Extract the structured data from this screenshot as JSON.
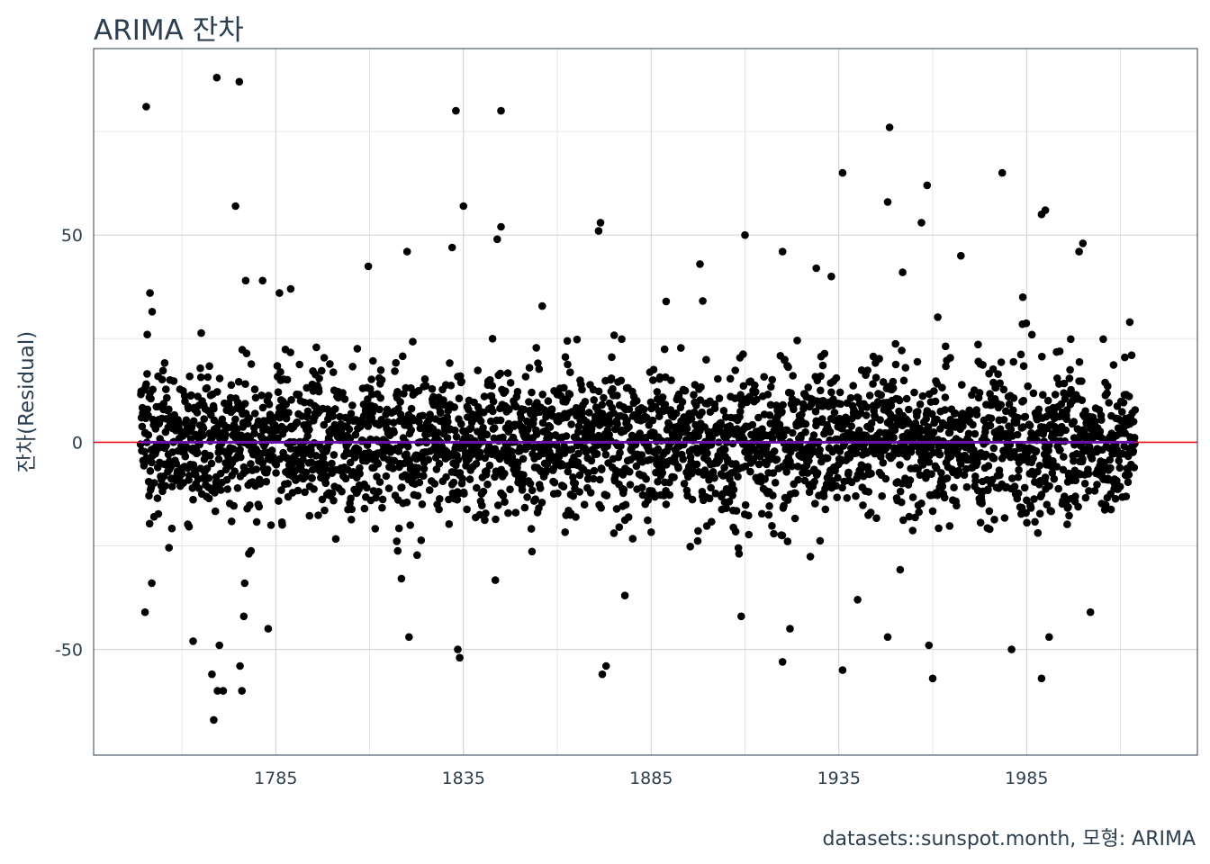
{
  "chart_data": {
    "type": "scatter",
    "title": "ARIMA 잔차",
    "xlabel": "",
    "ylabel": "잔차(Residual)",
    "caption": "datasets::sunspot.month, 모형: ARIMA",
    "x_range": [
      1749,
      2014
    ],
    "xlim": [
      1736.5,
      2030.5
    ],
    "ylim": [
      -75.5,
      95
    ],
    "x_ticks": [
      1785,
      1835,
      1885,
      1935,
      1985
    ],
    "x_tick_labels": [
      "1785",
      "1835",
      "1885",
      "1935",
      "1985"
    ],
    "y_ticks": [
      -50,
      0,
      50
    ],
    "y_tick_labels": [
      "-50",
      "0",
      "50"
    ],
    "x_minor_ticks": [
      1760,
      1810,
      1860,
      1910,
      1960,
      2010
    ],
    "y_minor_ticks": [
      -25,
      25,
      75
    ],
    "grid": true,
    "hlines": [
      {
        "y": 0,
        "color": "#e8131f"
      }
    ],
    "trend_line": {
      "y": 0,
      "color": "#6a0dad"
    },
    "point_color": "#000000",
    "points_note_free": true,
    "outliers": [
      [
        1750.5,
        81
      ],
      [
        1750.2,
        -41
      ],
      [
        1750.8,
        26
      ],
      [
        1751.5,
        36
      ],
      [
        1752.0,
        -34
      ],
      [
        1763.0,
        -48
      ],
      [
        1768.0,
        -56
      ],
      [
        1768.5,
        -67
      ],
      [
        1769.3,
        88
      ],
      [
        1769.5,
        -60
      ],
      [
        1770.0,
        -49
      ],
      [
        1771.0,
        -60
      ],
      [
        1774.3,
        57
      ],
      [
        1775.3,
        87
      ],
      [
        1775.5,
        -54
      ],
      [
        1776.0,
        -60
      ],
      [
        1776.5,
        -42
      ],
      [
        1777.0,
        39
      ],
      [
        1781.5,
        39
      ],
      [
        1783.0,
        -45
      ],
      [
        1786.0,
        36
      ],
      [
        1789.0,
        37
      ],
      [
        1820.0,
        46
      ],
      [
        1820.5,
        -47
      ],
      [
        1832.0,
        47
      ],
      [
        1833.0,
        80
      ],
      [
        1833.5,
        -50
      ],
      [
        1834.0,
        -52
      ],
      [
        1835.0,
        57
      ],
      [
        1845.0,
        80
      ],
      [
        1844.0,
        49
      ],
      [
        1845.0,
        52
      ],
      [
        1871.0,
        51
      ],
      [
        1871.5,
        53
      ],
      [
        1872.0,
        -56
      ],
      [
        1873.0,
        -54
      ],
      [
        1878.0,
        -37
      ],
      [
        1889.0,
        34
      ],
      [
        1898.0,
        43
      ],
      [
        1909.0,
        -42
      ],
      [
        1910.0,
        50
      ],
      [
        1920.0,
        46
      ],
      [
        1920.0,
        -53
      ],
      [
        1922.0,
        -45
      ],
      [
        1929.0,
        42
      ],
      [
        1933.0,
        40
      ],
      [
        1936.0,
        65
      ],
      [
        1936.0,
        -55
      ],
      [
        1940.0,
        -38
      ],
      [
        1948.0,
        58
      ],
      [
        1948.5,
        76
      ],
      [
        1948.0,
        -47
      ],
      [
        1952.0,
        41
      ],
      [
        1957.0,
        53
      ],
      [
        1958.5,
        62
      ],
      [
        1959.0,
        -49
      ],
      [
        1960.0,
        -57
      ],
      [
        1967.5,
        45
      ],
      [
        1978.5,
        65
      ],
      [
        1981.0,
        -50
      ],
      [
        1984.0,
        35
      ],
      [
        1989.0,
        55
      ],
      [
        1990.0,
        56
      ],
      [
        1989.0,
        -57
      ],
      [
        1991.0,
        -47
      ],
      [
        2000.0,
        48
      ],
      [
        2002.0,
        -41
      ],
      [
        1999.0,
        46
      ],
      [
        2012.5,
        29
      ],
      [
        2013.0,
        21
      ]
    ]
  }
}
